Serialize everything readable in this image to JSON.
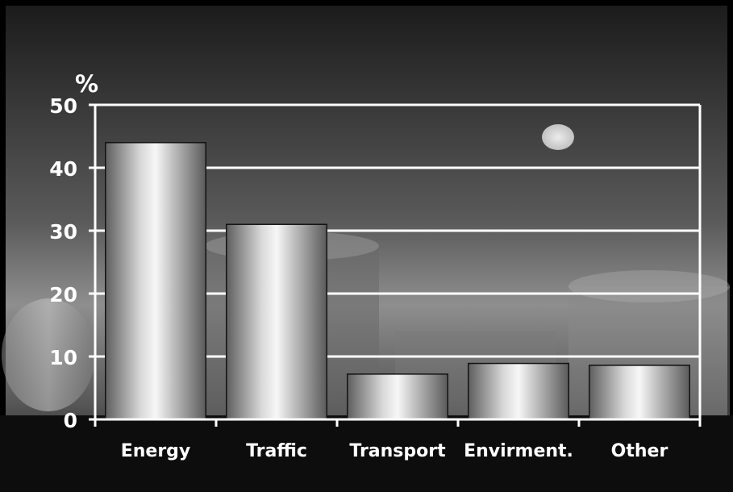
{
  "chart_data": {
    "type": "bar",
    "title": "",
    "xlabel": "",
    "ylabel": "%",
    "categories": [
      "Energy",
      "Traffic",
      "Transport",
      "Envirment.",
      "Other"
    ],
    "values": [
      44,
      31,
      7.2,
      8.9,
      8.6
    ],
    "ylim": [
      0,
      50
    ],
    "yticks": [
      "0",
      "10",
      "20",
      "30",
      "40",
      "50"
    ],
    "grid": true,
    "legend": "none",
    "colors": {
      "bar_dark": "#6e6e6e",
      "bar_light": "#f4f4f4",
      "axis": "#ffffff",
      "text": "#ffffff"
    }
  }
}
